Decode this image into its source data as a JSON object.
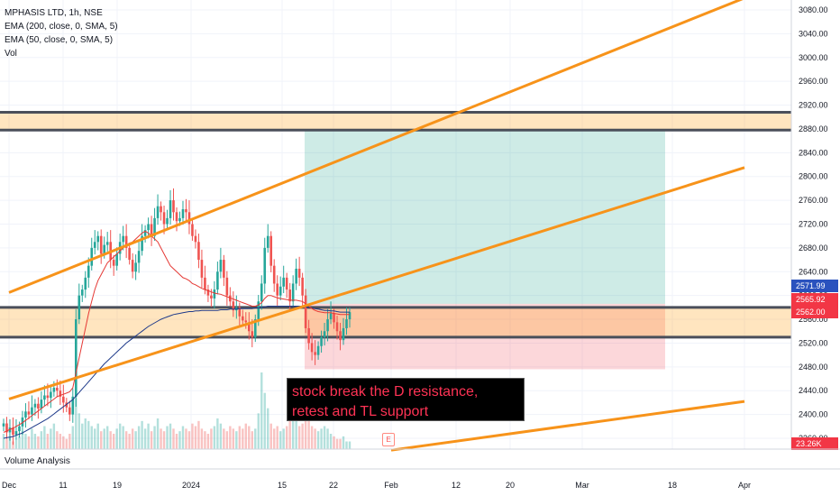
{
  "header": {
    "symbol_line": "MPHASIS LTD, 1h, NSE",
    "ema200_line": "EMA (200, close, 0, SMA, 5)",
    "ema50_line": "EMA (50, close, 0, SMA, 5)",
    "vol_line": "Vol"
  },
  "annotation": {
    "line1": "stock break the D resistance,",
    "line2": "retest and TL support"
  },
  "footer": {
    "indicator_label": "Volume Analysis",
    "earnings_badge": "E"
  },
  "chart_data": {
    "type": "candlestick",
    "ylim": [
      2340,
      3100
    ],
    "y_ticks": [
      3080,
      3040,
      3000,
      2960,
      2920,
      2880,
      2840,
      2800,
      2760,
      2720,
      2680,
      2640,
      2600,
      2560,
      2520,
      2480,
      2440,
      2400,
      2360
    ],
    "x_ticks": [
      "Dec",
      "11",
      "19",
      "2024",
      "15",
      "22",
      "Feb",
      "12",
      "20",
      "Mar",
      "18",
      "Apr"
    ],
    "price_tags": [
      {
        "label": "2571.99",
        "value": 2571.99,
        "color": "#2a52be"
      },
      {
        "label": "2565.92",
        "value": 2565.92,
        "color": "#f23645"
      },
      {
        "label": "2562.00",
        "value": 2562.0,
        "color": "#f23645"
      },
      {
        "label": "23.26K",
        "value": null,
        "color": "#f23645"
      }
    ],
    "price_closes": [
      2385,
      2370,
      2378,
      2366,
      2372,
      2380,
      2395,
      2405,
      2400,
      2412,
      2418,
      2410,
      2425,
      2432,
      2428,
      2438,
      2445,
      2440,
      2430,
      2420,
      2412,
      2400,
      2430,
      2560,
      2600,
      2610,
      2630,
      2650,
      2680,
      2690,
      2700,
      2670,
      2685,
      2690,
      2660,
      2650,
      2670,
      2690,
      2700,
      2680,
      2660,
      2640,
      2655,
      2675,
      2700,
      2710,
      2720,
      2700,
      2730,
      2750,
      2740,
      2720,
      2730,
      2760,
      2740,
      2725,
      2730,
      2745,
      2740,
      2720,
      2700,
      2690,
      2660,
      2630,
      2610,
      2600,
      2595,
      2610,
      2640,
      2660,
      2630,
      2600,
      2590,
      2575,
      2580,
      2565,
      2558,
      2555,
      2540,
      2530,
      2560,
      2590,
      2620,
      2680,
      2700,
      2650,
      2620,
      2600,
      2615,
      2630,
      2610,
      2590,
      2620,
      2645,
      2630,
      2600,
      2545,
      2520,
      2505,
      2500,
      2515,
      2530,
      2540,
      2560,
      2570,
      2555,
      2540,
      2525,
      2545,
      2560,
      2572
    ],
    "ema200": [
      2360,
      2361,
      2362,
      2363,
      2365,
      2367,
      2369,
      2372,
      2375,
      2378,
      2381,
      2384,
      2387,
      2390,
      2393,
      2397,
      2401,
      2405,
      2409,
      2413,
      2417,
      2421,
      2425,
      2431,
      2437,
      2443,
      2449,
      2455,
      2461,
      2467,
      2473,
      2479,
      2485,
      2490,
      2495,
      2500,
      2505,
      2510,
      2515,
      2520,
      2524,
      2528,
      2532,
      2536,
      2540,
      2544,
      2548,
      2551,
      2554,
      2557,
      2560,
      2562,
      2564,
      2566,
      2568,
      2569,
      2570,
      2571,
      2572,
      2573,
      2573,
      2574,
      2574,
      2575,
      2575,
      2575,
      2575,
      2575,
      2575,
      2576,
      2576,
      2576,
      2577,
      2577,
      2577,
      2578,
      2578,
      2578,
      2578,
      2578,
      2579,
      2579,
      2580,
      2581,
      2582,
      2582,
      2582,
      2582,
      2582,
      2582,
      2582,
      2582,
      2582,
      2582,
      2582,
      2582,
      2581,
      2580,
      2579,
      2578,
      2577,
      2576,
      2575,
      2575,
      2574,
      2574,
      2573,
      2572,
      2572,
      2572,
      2572
    ],
    "ema50": [
      2370,
      2372,
      2375,
      2377,
      2380,
      2383,
      2386,
      2390,
      2394,
      2398,
      2402,
      2406,
      2410,
      2414,
      2418,
      2422,
      2426,
      2430,
      2432,
      2434,
      2436,
      2438,
      2445,
      2470,
      2495,
      2520,
      2545,
      2570,
      2590,
      2610,
      2625,
      2635,
      2645,
      2655,
      2660,
      2665,
      2670,
      2675,
      2680,
      2685,
      2688,
      2690,
      2695,
      2700,
      2705,
      2708,
      2705,
      2700,
      2695,
      2690,
      2680,
      2670,
      2660,
      2650,
      2645,
      2640,
      2635,
      2630,
      2628,
      2625,
      2620,
      2618,
      2615,
      2612,
      2610,
      2608,
      2606,
      2604,
      2603,
      2602,
      2600,
      2598,
      2596,
      2594,
      2592,
      2590,
      2588,
      2586,
      2584,
      2582,
      2582,
      2584,
      2588,
      2595,
      2600,
      2600,
      2598,
      2596,
      2595,
      2594,
      2593,
      2592,
      2592,
      2592,
      2591,
      2590,
      2586,
      2582,
      2578,
      2575,
      2573,
      2572,
      2571,
      2571,
      2571,
      2570,
      2569,
      2568,
      2568,
      2568,
      2568
    ],
    "volume": [
      6,
      4,
      5,
      3,
      4,
      5,
      7,
      6,
      5,
      8,
      6,
      5,
      7,
      9,
      6,
      8,
      10,
      7,
      6,
      5,
      4,
      6,
      9,
      20,
      14,
      10,
      12,
      11,
      9,
      8,
      10,
      7,
      8,
      9,
      7,
      6,
      8,
      10,
      9,
      7,
      6,
      8,
      7,
      9,
      11,
      8,
      10,
      7,
      9,
      12,
      8,
      7,
      9,
      10,
      8,
      6,
      7,
      9,
      8,
      7,
      10,
      9,
      11,
      8,
      7,
      6,
      8,
      9,
      12,
      10,
      8,
      7,
      9,
      8,
      7,
      9,
      8,
      10,
      9,
      7,
      8,
      14,
      30,
      22,
      16,
      10,
      8,
      9,
      7,
      8,
      9,
      12,
      18,
      14,
      9,
      10,
      12,
      11,
      9,
      8,
      7,
      8,
      9,
      8,
      6,
      5,
      4,
      4,
      5,
      3,
      3
    ],
    "resistance_zone": [
      2878,
      2908
    ],
    "support_zone": [
      2530,
      2557
    ],
    "trendlines": [
      {
        "name": "upper-channel",
        "from": [
          "Dec",
          2605
        ],
        "to": [
          "Apr",
          3100
        ]
      },
      {
        "name": "middle-channel",
        "from": [
          "Dec",
          2426
        ],
        "to": [
          "Apr",
          2815
        ]
      },
      {
        "name": "lower-channel",
        "from": [
          "Feb",
          2340
        ],
        "to": [
          "Apr",
          2422
        ]
      }
    ],
    "long_position": {
      "entry": 2586,
      "target": 2878,
      "stop": 2476
    }
  }
}
